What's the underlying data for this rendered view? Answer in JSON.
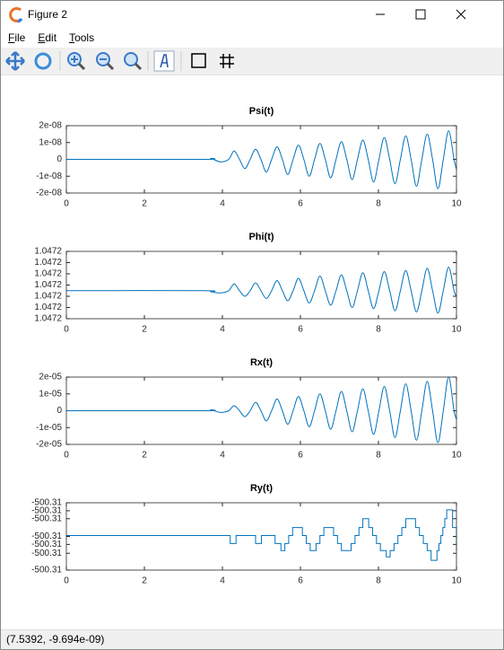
{
  "window": {
    "title": "Figure 2",
    "menu": [
      "File",
      "Edit",
      "Tools"
    ],
    "status": "(7.5392, -9.694e-09)"
  },
  "chart_data": [
    {
      "type": "line",
      "title": "Psi(t)",
      "color": "#0072bd",
      "x": [
        0,
        3.5,
        3.7,
        3.95,
        4.16,
        4.3,
        4.4375,
        4.575,
        4.7125,
        4.85,
        4.9875,
        5.125,
        5.2625,
        5.4,
        5.5375,
        5.675,
        5.8125,
        5.95,
        6.0875,
        6.225,
        6.3625,
        6.5,
        6.6375,
        6.775,
        6.9125,
        7.05,
        7.1875,
        7.325,
        7.4625,
        7.6,
        7.7375,
        7.875,
        8.0125,
        8.15,
        8.2875,
        8.425,
        8.5625,
        8.7,
        8.8375,
        8.975,
        9.1125,
        9.25,
        9.3875,
        9.525,
        9.6625,
        9.8,
        9.9375,
        10
      ],
      "values": [
        0,
        0,
        5e-10,
        -1.5e-09,
        0,
        5e-09,
        0,
        -5.5e-09,
        0,
        6e-09,
        0,
        -7.5e-09,
        0,
        7.5e-09,
        0,
        -9e-09,
        0,
        8.5e-09,
        0,
        -1e-08,
        0,
        9.5e-09,
        0,
        -1.1e-08,
        0,
        1.05e-08,
        0,
        -1.2e-08,
        0,
        1.15e-08,
        0,
        -1.35e-08,
        0,
        1.3e-08,
        0,
        -1.45e-08,
        0,
        1.4e-08,
        0,
        -1.6e-08,
        0,
        1.5e-08,
        0,
        -1.75e-08,
        0,
        1.7e-08,
        0,
        -6e-09
      ],
      "xlim": [
        0,
        10
      ],
      "xticks": [
        0,
        2,
        4,
        6,
        8,
        10
      ],
      "ylim": [
        -2e-08,
        2e-08
      ],
      "yticks": [
        {
          "value": -2e-08,
          "label": "-2e-08"
        },
        {
          "value": -1e-08,
          "label": "-1e-08"
        },
        0,
        {
          "value": 1e-08,
          "label": "1e-08"
        },
        {
          "value": 2e-08,
          "label": "2e-08"
        }
      ]
    },
    {
      "type": "line",
      "title": "Phi(t)",
      "color": "#0072bd",
      "x": [
        0,
        3.5,
        3.7,
        3.95,
        4.16,
        4.3,
        4.4375,
        4.575,
        4.7125,
        4.85,
        4.9875,
        5.125,
        5.2625,
        5.4,
        5.5375,
        5.675,
        5.8125,
        5.95,
        6.0875,
        6.225,
        6.3625,
        6.5,
        6.6375,
        6.775,
        6.9125,
        7.05,
        7.1875,
        7.325,
        7.4625,
        7.6,
        7.7375,
        7.875,
        8.0125,
        8.15,
        8.2875,
        8.425,
        8.5625,
        8.7,
        8.8375,
        8.975,
        9.1125,
        9.25,
        9.3875,
        9.525,
        9.6625,
        9.8,
        9.9375,
        10
      ],
      "values": [
        1.0471965,
        1.0471965,
        1.0471964,
        1.0471963,
        1.0471965,
        1.0471971,
        1.0471965,
        1.047196,
        1.0471965,
        1.0471972,
        1.0471965,
        1.0471958,
        1.0471965,
        1.0471974,
        1.0471965,
        1.0471956,
        1.0471965,
        1.0471976,
        1.0471965,
        1.0471954,
        1.0471965,
        1.0471978,
        1.0471965,
        1.0471952,
        1.0471965,
        1.0471979,
        1.0471965,
        1.047195,
        1.0471965,
        1.0471981,
        1.0471965,
        1.0471949,
        1.0471965,
        1.0471982,
        1.0471965,
        1.0471947,
        1.0471965,
        1.0471983,
        1.0471965,
        1.0471946,
        1.0471965,
        1.0471985,
        1.0471965,
        1.0471945,
        1.0471965,
        1.0471986,
        1.0471965,
        1.047196
      ],
      "xlim": [
        0,
        10
      ],
      "xticks": [
        0,
        2,
        4,
        6,
        8,
        10
      ],
      "ylim": [
        1.047194,
        1.0472
      ],
      "yticks": [
        {
          "value": 1.047194,
          "label": "1.0472"
        },
        {
          "value": 1.047195,
          "label": "1.0472"
        },
        {
          "value": 1.047196,
          "label": "1.0472"
        },
        {
          "value": 1.047197,
          "label": "1.0472"
        },
        {
          "value": 1.047198,
          "label": "1.0472"
        },
        {
          "value": 1.047199,
          "label": "1.0472"
        },
        1.0472
      ]
    },
    {
      "type": "line",
      "title": "Rx(t)",
      "color": "#0072bd",
      "x": [
        0,
        3.5,
        3.7,
        3.95,
        4.16,
        4.3,
        4.4375,
        4.575,
        4.7125,
        4.85,
        4.9875,
        5.125,
        5.2625,
        5.4,
        5.5375,
        5.675,
        5.8125,
        5.95,
        6.0875,
        6.225,
        6.3625,
        6.5,
        6.6375,
        6.775,
        6.9125,
        7.05,
        7.1875,
        7.325,
        7.4625,
        7.6,
        7.7375,
        7.875,
        8.0125,
        8.15,
        8.2875,
        8.425,
        8.5625,
        8.7,
        8.8375,
        8.975,
        9.1125,
        9.25,
        9.3875,
        9.525,
        9.6625,
        9.8,
        9.9375,
        10
      ],
      "values": [
        0,
        0,
        5e-07,
        -1e-06,
        0,
        3e-06,
        0,
        -3.5e-06,
        0,
        5e-06,
        0,
        -6e-06,
        0,
        7e-06,
        0,
        -8e-06,
        0,
        8.5e-06,
        0,
        -9.5e-06,
        0,
        1e-05,
        0,
        -1.1e-05,
        0,
        1.15e-05,
        0,
        -1.25e-05,
        0,
        1.3e-05,
        0,
        -1.4e-05,
        0,
        1.45e-05,
        0,
        -1.6e-05,
        0,
        1.6e-05,
        0,
        -1.75e-05,
        0,
        1.75e-05,
        0,
        -1.9e-05,
        0,
        2e-05,
        0,
        -5e-06
      ],
      "xlim": [
        0,
        10
      ],
      "xticks": [
        0,
        2,
        4,
        6,
        8,
        10
      ],
      "ylim": [
        -2e-05,
        2e-05
      ],
      "yticks": [
        {
          "value": -2e-05,
          "label": "-2e-05"
        },
        {
          "value": -1e-05,
          "label": "-1e-05"
        },
        0,
        {
          "value": 1e-05,
          "label": "1e-05"
        },
        {
          "value": 2e-05,
          "label": "2e-05"
        }
      ]
    },
    {
      "type": "line",
      "title": "Ry(t)",
      "color": "#0072bd",
      "drawstyle": "steps-post",
      "x": [
        0,
        4.2,
        4.35,
        4.85,
        5.0,
        5.35,
        5.5,
        5.6,
        5.7,
        5.8,
        5.95,
        6.05,
        6.15,
        6.25,
        6.4,
        6.5,
        6.6,
        6.75,
        6.85,
        6.95,
        7.05,
        7.2,
        7.3,
        7.4,
        7.5,
        7.6,
        7.75,
        7.85,
        7.95,
        8.05,
        8.2,
        8.3,
        8.4,
        8.5,
        8.6,
        8.7,
        8.85,
        8.95,
        9.05,
        9.15,
        9.25,
        9.35,
        9.45,
        9.5,
        9.55,
        9.6,
        9.65,
        9.7,
        9.75,
        9.85,
        9.9,
        10
      ],
      "values": [
        -500.3101,
        -500.311,
        -500.3101,
        -500.311,
        -500.3101,
        -500.311,
        -500.3118,
        -500.311,
        -500.3101,
        -500.3092,
        -500.3092,
        -500.3101,
        -500.311,
        -500.3118,
        -500.311,
        -500.3101,
        -500.3092,
        -500.3092,
        -500.3101,
        -500.311,
        -500.3118,
        -500.3118,
        -500.311,
        -500.3101,
        -500.3092,
        -500.3082,
        -500.3092,
        -500.3101,
        -500.311,
        -500.3118,
        -500.3125,
        -500.3118,
        -500.311,
        -500.3101,
        -500.3092,
        -500.3082,
        -500.3082,
        -500.3092,
        -500.3101,
        -500.311,
        -500.3118,
        -500.3129,
        -500.3129,
        -500.3118,
        -500.311,
        -500.3101,
        -500.3092,
        -500.3082,
        -500.3072,
        -500.3072,
        -500.3092,
        -500.3118
      ],
      "xlim": [
        0,
        10
      ],
      "xticks": [
        0,
        2,
        4,
        6,
        8,
        10
      ],
      "ylim": [
        -500.314,
        -500.3064
      ],
      "yticks": [
        {
          "value": -500.314,
          "label": "-500.31"
        },
        {
          "value": -500.3121,
          "label": "-500.31"
        },
        {
          "value": -500.3111,
          "label": "-500.31"
        },
        {
          "value": -500.3102,
          "label": "-500.31"
        },
        {
          "value": -500.3082,
          "label": "-500.31"
        },
        {
          "value": -500.3073,
          "label": "-500.31"
        },
        {
          "value": -500.3064,
          "label": "-500.31"
        }
      ]
    }
  ]
}
